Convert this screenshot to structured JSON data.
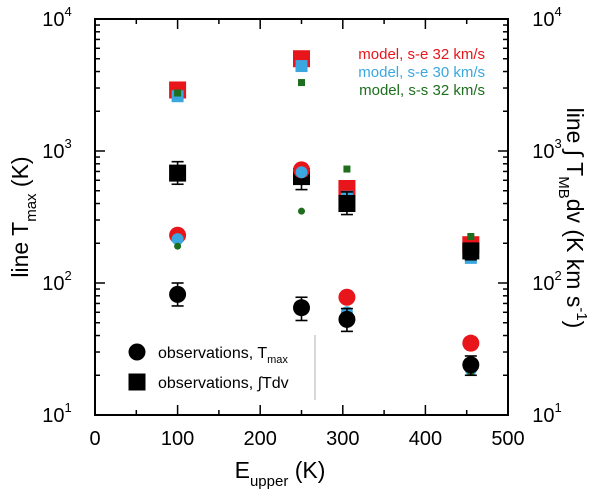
{
  "chart_data": {
    "type": "scatter",
    "xlabel": {
      "main": "E",
      "sub": "upper",
      "unit": "(K)"
    },
    "ylabel_left": {
      "main": "line T",
      "sub": "max",
      "unit": "(K)"
    },
    "ylabel_right": {
      "main": "line",
      "integral": "∫",
      "t": "T",
      "sub": "MB",
      "dv": "dv",
      "unit_open": "(K km s",
      "unit_sup": "-1",
      "unit_close": ")"
    },
    "xlim": [
      0,
      500
    ],
    "ylim": [
      10,
      10000
    ],
    "yscale": "log",
    "x_ticks": [
      0,
      100,
      200,
      300,
      400,
      500
    ],
    "x_tick_labels": [
      "0",
      "100",
      "200",
      "300",
      "400",
      "500"
    ],
    "y_ticks": [
      10,
      100,
      1000,
      10000
    ],
    "y_tick_labels": [
      {
        "base": "10",
        "exp": "1"
      },
      {
        "base": "10",
        "exp": "2"
      },
      {
        "base": "10",
        "exp": "3"
      },
      {
        "base": "10",
        "exp": "4"
      }
    ],
    "legend_models": [
      {
        "label": "model, s-e 32 km/s",
        "color": "#e8151b"
      },
      {
        "label": "model, s-e 30 km/s",
        "color": "#3aa7e0"
      },
      {
        "label": "model, s-s 32 km/s",
        "color": "#1d6e1d"
      }
    ],
    "legend_obs": [
      {
        "label": "observations, T",
        "sub": "max",
        "marker": "circle"
      },
      {
        "label": "observations, ∫Tdv",
        "sub": "",
        "marker": "square"
      }
    ],
    "series": [
      {
        "name": "model s-e 32 km/s, integrated",
        "marker": "square",
        "size": "large",
        "color": "#e8151b",
        "points": [
          [
            100,
            2900
          ],
          [
            250,
            5000
          ],
          [
            305,
            520
          ],
          [
            455,
            195
          ]
        ]
      },
      {
        "name": "model s-e 30 km/s, integrated",
        "marker": "square",
        "size": "medium",
        "color": "#3aa7e0",
        "points": [
          [
            100,
            2600
          ],
          [
            250,
            4400
          ],
          [
            305,
            450
          ],
          [
            455,
            155
          ]
        ]
      },
      {
        "name": "model s-s 32 km/s, integrated",
        "marker": "square",
        "size": "small",
        "color": "#1d6e1d",
        "points": [
          [
            100,
            2750
          ],
          [
            250,
            3300
          ],
          [
            305,
            730
          ],
          [
            455,
            225
          ]
        ]
      },
      {
        "name": "observations, ∫Tdv",
        "marker": "square",
        "size": "large",
        "color": "#000000",
        "points": [
          [
            100,
            680
          ],
          [
            250,
            640
          ],
          [
            305,
            400
          ],
          [
            455,
            175
          ]
        ],
        "errors": [
          [
            560,
            830
          ],
          [
            510,
            780
          ],
          [
            330,
            490
          ],
          [
            150,
            200
          ]
        ]
      },
      {
        "name": "model s-e 32 km/s, Tmax",
        "marker": "circle",
        "size": "large",
        "color": "#e8151b",
        "points": [
          [
            100,
            230
          ],
          [
            250,
            720
          ],
          [
            305,
            78
          ],
          [
            455,
            35
          ]
        ]
      },
      {
        "name": "model s-e 30 km/s, Tmax",
        "marker": "circle",
        "size": "medium",
        "color": "#3aa7e0",
        "points": [
          [
            100,
            215
          ],
          [
            250,
            690
          ],
          [
            305,
            60
          ],
          [
            455,
            22
          ]
        ]
      },
      {
        "name": "model s-s 32 km/s, Tmax",
        "marker": "circle",
        "size": "small",
        "color": "#1d6e1d",
        "points": [
          [
            100,
            190
          ],
          [
            250,
            350
          ],
          [
            305,
            56
          ],
          [
            455,
            21
          ]
        ]
      },
      {
        "name": "observations, Tmax",
        "marker": "circle",
        "size": "large",
        "color": "#000000",
        "points": [
          [
            100,
            82
          ],
          [
            250,
            65
          ],
          [
            305,
            53
          ],
          [
            455,
            24
          ]
        ],
        "errors": [
          [
            67,
            100
          ],
          [
            52,
            78
          ],
          [
            43,
            64
          ],
          [
            20,
            28
          ]
        ]
      }
    ]
  }
}
